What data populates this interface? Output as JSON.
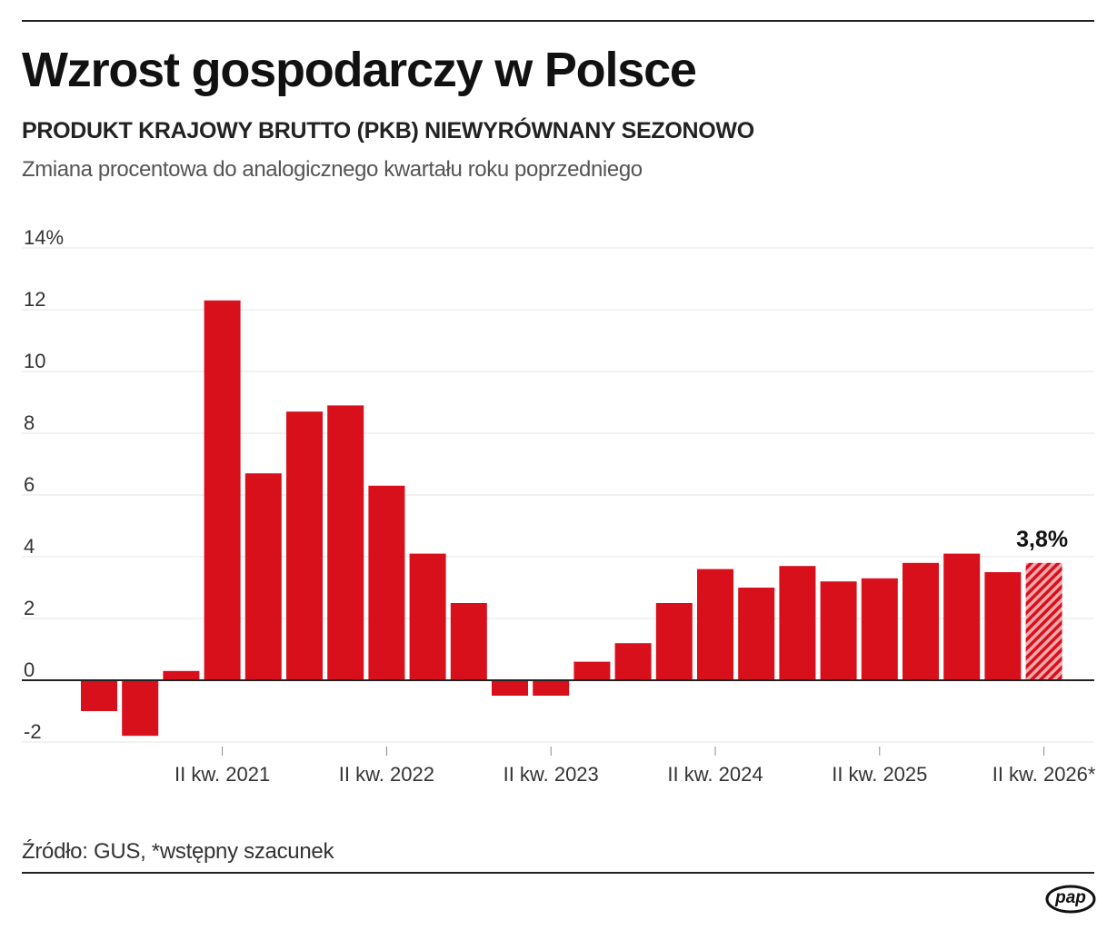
{
  "header": {
    "title": "Wzrost gospodarczy w Polsce",
    "subtitle": "PRODUKT KRAJOWY BRUTTO (PKB) NIEWYRÓWNANY SEZONOWO",
    "description": "Zmiana procentowa do analogicznego kwartału roku poprzedniego"
  },
  "footer": {
    "source": "Źródło: GUS, *wstępny szacunek",
    "logo": "pap"
  },
  "colors": {
    "bar": "#d7101c",
    "text": "#111111",
    "grid": "#e6e6e6",
    "axis": "#222222"
  },
  "chart_data": {
    "type": "bar",
    "ylim": [
      -2,
      14
    ],
    "yticks": [
      {
        "value": 14,
        "label": "14%"
      },
      {
        "value": 12,
        "label": "12"
      },
      {
        "value": 10,
        "label": "10"
      },
      {
        "value": 8,
        "label": "8"
      },
      {
        "value": 6,
        "label": "6"
      },
      {
        "value": 4,
        "label": "4"
      },
      {
        "value": 2,
        "label": "2"
      },
      {
        "value": 0,
        "label": "0"
      },
      {
        "value": -2,
        "label": "-2"
      }
    ],
    "values": [
      -1.0,
      -1.8,
      0.3,
      12.3,
      6.7,
      8.7,
      8.9,
      6.3,
      4.1,
      2.5,
      -0.5,
      -0.5,
      0.6,
      1.2,
      2.5,
      3.6,
      3.0,
      3.7,
      3.2,
      3.3,
      3.8,
      4.1,
      3.5,
      3.8
    ],
    "estimated": [
      false,
      false,
      false,
      false,
      false,
      false,
      false,
      false,
      false,
      false,
      false,
      false,
      false,
      false,
      false,
      false,
      false,
      false,
      false,
      false,
      false,
      false,
      false,
      true
    ],
    "xtick_labels": [
      {
        "index": 3,
        "label": "II kw. 2021"
      },
      {
        "index": 7,
        "label": "II kw. 2022"
      },
      {
        "index": 11,
        "label": "II kw. 2023"
      },
      {
        "index": 15,
        "label": "II kw. 2024"
      },
      {
        "index": 19,
        "label": "II kw. 2025"
      },
      {
        "index": 23,
        "label": "II kw. 2026*"
      }
    ],
    "annotation": {
      "index": 23,
      "label": "3,8%"
    }
  }
}
